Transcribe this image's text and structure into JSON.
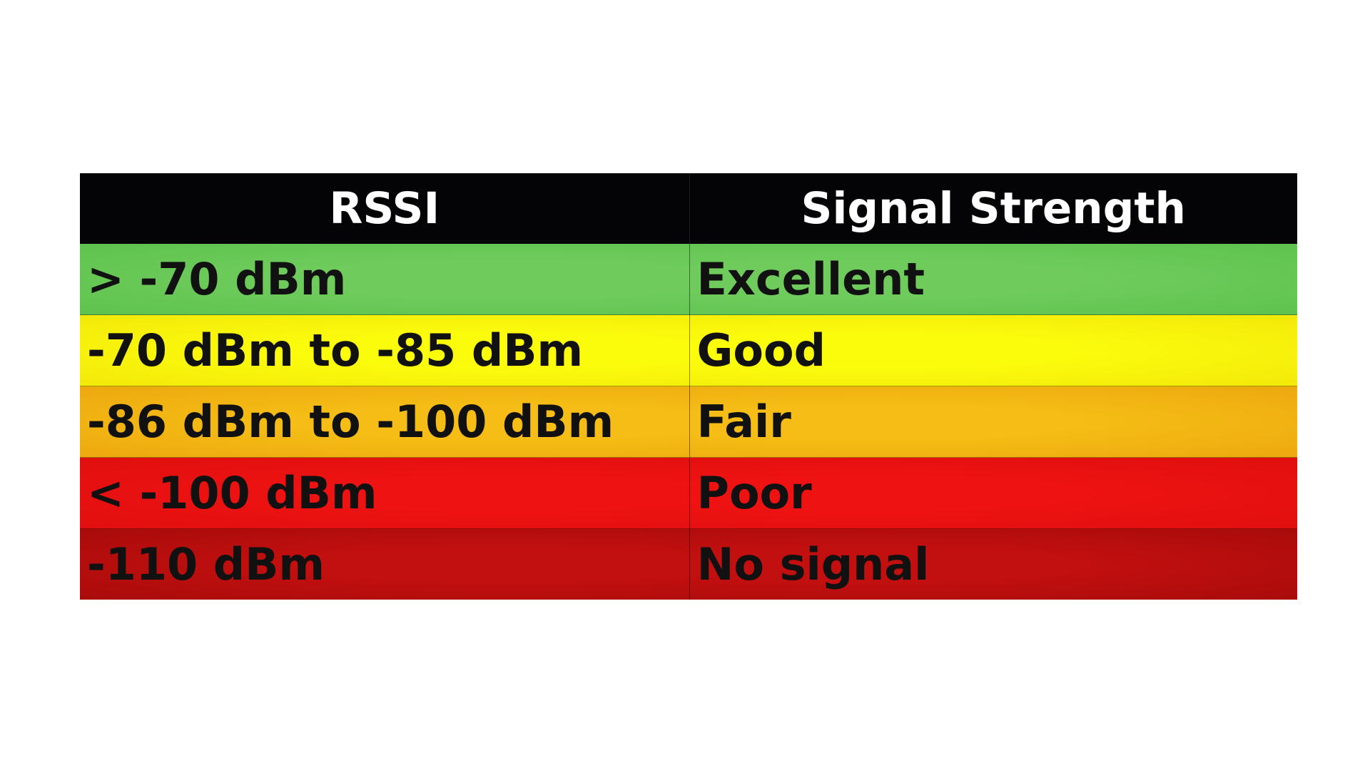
{
  "table": {
    "headers": [
      "RSSI",
      "Signal Strength"
    ],
    "rows": [
      {
        "rssi": "> -70 dBm",
        "strength": "Excellent",
        "color": "#6fcc5c",
        "color_edge": "#5ec24e"
      },
      {
        "rssi": "-70 dBm to -85 dBm",
        "strength": "Good",
        "color": "#fbfb0c",
        "color_edge": "#f3e80a"
      },
      {
        "rssi": "-86 dBm to -100 dBm",
        "strength": "Fair",
        "color": "#f5bd15",
        "color_edge": "#eda80f"
      },
      {
        "rssi": "< -100 dBm",
        "strength": "Poor",
        "color": "#ee1212",
        "color_edge": "#e00f0f"
      },
      {
        "rssi": "-110 dBm",
        "strength": "No signal",
        "color": "#c20f0f",
        "color_edge": "#a80b0b"
      }
    ]
  }
}
